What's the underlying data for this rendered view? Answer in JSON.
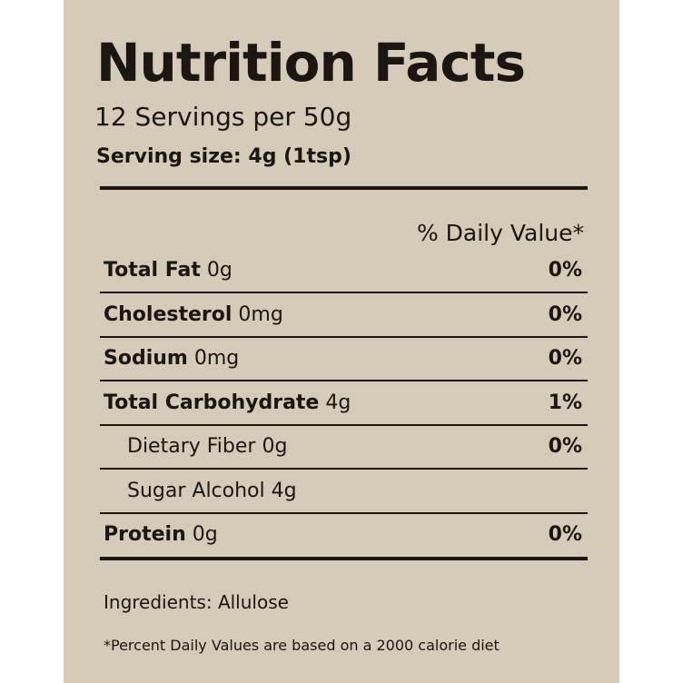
{
  "label": {
    "title": "Nutrition Facts",
    "servings_per": "12 Servings per 50g",
    "serving_size": "Serving size: 4g (1tsp)",
    "daily_value_header": "% Daily Value*",
    "nutrients": [
      {
        "name": "Total Fat",
        "amount": "0g",
        "dv": "0%"
      },
      {
        "name": "Cholesterol",
        "amount": "0mg",
        "dv": "0%"
      },
      {
        "name": "Sodium",
        "amount": "0mg",
        "dv": "0%"
      },
      {
        "name": "Total Carbohydrate",
        "amount": "4g",
        "dv": "1%"
      },
      {
        "name": "Dietary Fiber 0g",
        "dv": "0%"
      },
      {
        "name": "Sugar Alcohol 4g"
      },
      {
        "name": "Protein",
        "amount": "0g",
        "dv": "0%"
      }
    ],
    "ingredients": "Ingredients: Allulose",
    "footnote": "*Percent Daily Values are based on a 2000 calorie diet"
  },
  "colors": {
    "panel_background": "#d6cab9",
    "text": "#1b1612",
    "page_background": "#ffffff"
  }
}
